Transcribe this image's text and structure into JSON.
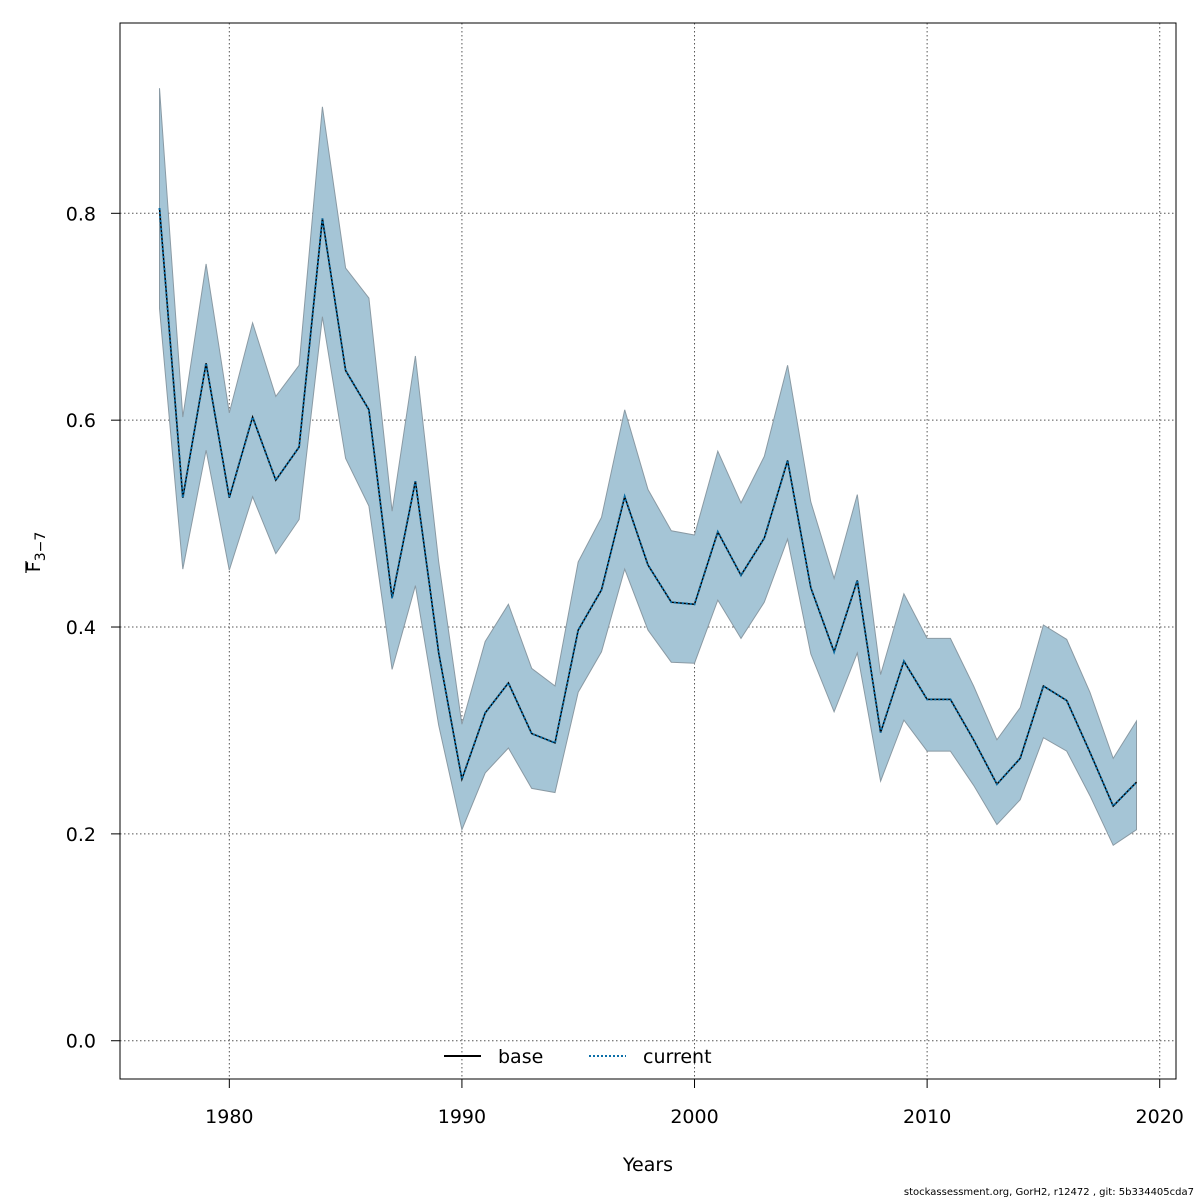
{
  "chart_data": {
    "type": "line",
    "xlabel": "Years",
    "ylabel": "F3−7",
    "ylabel_main": "F",
    "ylabel_sub": "3−7",
    "xlim": [
      1975.3,
      2020.7
    ],
    "ylim": [
      -0.037,
      0.984
    ],
    "x_ticks": [
      1980,
      1990,
      2000,
      2010,
      2020
    ],
    "x_tick_labels": [
      "1980",
      "1990",
      "2000",
      "2010",
      "2020"
    ],
    "y_ticks": [
      0.0,
      0.2,
      0.4,
      0.6,
      0.8
    ],
    "y_tick_labels": [
      "0.0",
      "0.2",
      "0.4",
      "0.6",
      "0.8"
    ],
    "grid": true,
    "legend_position": "bottom-center",
    "band_color": "#a5c5d6",
    "band_edge_color": "#8a9aa4",
    "years": [
      1977,
      1978,
      1979,
      1980,
      1981,
      1982,
      1983,
      1984,
      1985,
      1986,
      1987,
      1988,
      1989,
      1990,
      1991,
      1992,
      1993,
      1994,
      1995,
      1996,
      1997,
      1998,
      1999,
      2000,
      2001,
      2002,
      2003,
      2004,
      2005,
      2006,
      2007,
      2008,
      2009,
      2010,
      2011,
      2012,
      2013,
      2014,
      2015,
      2016,
      2017,
      2018,
      2019
    ],
    "series": [
      {
        "name": "base",
        "style": "solid",
        "color": "#000000",
        "values": [
          0.805,
          0.525,
          0.655,
          0.525,
          0.603,
          0.542,
          0.574,
          0.795,
          0.648,
          0.61,
          0.428,
          0.541,
          0.375,
          0.253,
          0.317,
          0.346,
          0.297,
          0.288,
          0.397,
          0.436,
          0.526,
          0.46,
          0.424,
          0.422,
          0.492,
          0.45,
          0.486,
          0.561,
          0.438,
          0.376,
          0.445,
          0.298,
          0.367,
          0.33,
          0.33,
          0.291,
          0.248,
          0.273,
          0.343,
          0.329,
          0.279,
          0.227,
          0.25
        ]
      },
      {
        "name": "current",
        "style": "dotted",
        "color": "#0b6fa8",
        "values": [
          0.805,
          0.525,
          0.655,
          0.525,
          0.603,
          0.542,
          0.574,
          0.795,
          0.648,
          0.61,
          0.428,
          0.541,
          0.375,
          0.253,
          0.317,
          0.346,
          0.297,
          0.288,
          0.397,
          0.436,
          0.526,
          0.46,
          0.424,
          0.422,
          0.492,
          0.45,
          0.486,
          0.561,
          0.438,
          0.376,
          0.445,
          0.298,
          0.367,
          0.33,
          0.33,
          0.291,
          0.248,
          0.273,
          0.343,
          0.329,
          0.279,
          0.227,
          0.25
        ]
      }
    ],
    "band": {
      "lower": [
        0.708,
        0.456,
        0.571,
        0.455,
        0.526,
        0.471,
        0.504,
        0.7,
        0.563,
        0.517,
        0.359,
        0.44,
        0.305,
        0.204,
        0.259,
        0.283,
        0.244,
        0.24,
        0.337,
        0.376,
        0.456,
        0.397,
        0.366,
        0.365,
        0.426,
        0.389,
        0.424,
        0.485,
        0.374,
        0.318,
        0.375,
        0.251,
        0.31,
        0.28,
        0.28,
        0.247,
        0.209,
        0.233,
        0.293,
        0.28,
        0.237,
        0.189,
        0.204
      ],
      "upper": [
        0.921,
        0.603,
        0.751,
        0.607,
        0.694,
        0.623,
        0.653,
        0.903,
        0.747,
        0.718,
        0.512,
        0.662,
        0.463,
        0.306,
        0.386,
        0.422,
        0.36,
        0.343,
        0.463,
        0.506,
        0.61,
        0.533,
        0.493,
        0.489,
        0.57,
        0.52,
        0.565,
        0.653,
        0.521,
        0.447,
        0.528,
        0.354,
        0.432,
        0.389,
        0.389,
        0.343,
        0.291,
        0.322,
        0.402,
        0.388,
        0.337,
        0.273,
        0.309
      ]
    }
  },
  "footer": {
    "text": "stockassessment.org, GorH2, r12472 , git: 5b334405cda7"
  }
}
